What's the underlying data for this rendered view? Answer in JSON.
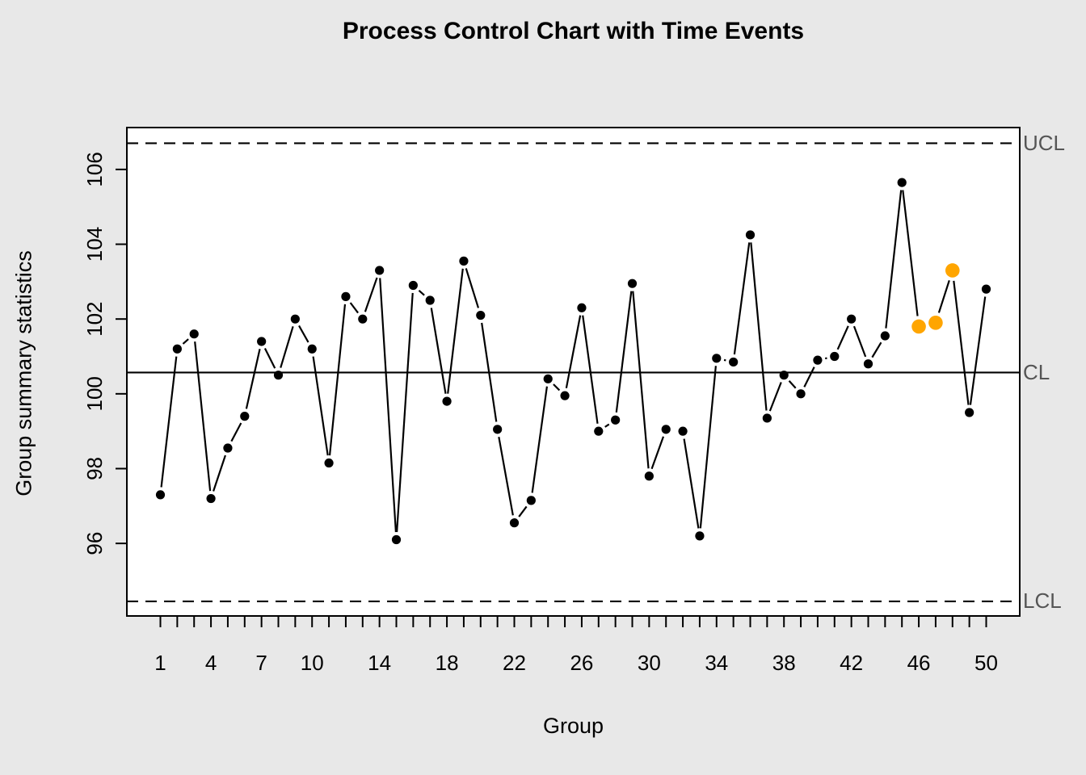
{
  "title": "Process Control Chart with Time Events",
  "chart_data": {
    "type": "line",
    "title": "Process Control Chart with Time Events",
    "xlabel": "Group",
    "ylabel": "Group summary statistics",
    "x": [
      1,
      2,
      3,
      4,
      5,
      6,
      7,
      8,
      9,
      10,
      11,
      12,
      13,
      14,
      15,
      16,
      17,
      18,
      19,
      20,
      21,
      22,
      23,
      24,
      25,
      26,
      27,
      28,
      29,
      30,
      31,
      32,
      33,
      34,
      35,
      36,
      37,
      38,
      39,
      40,
      41,
      42,
      43,
      44,
      45,
      46,
      47,
      48,
      49,
      50
    ],
    "values": [
      97.3,
      101.2,
      101.6,
      97.2,
      98.55,
      99.4,
      101.4,
      100.5,
      102.0,
      101.2,
      98.15,
      102.6,
      102.0,
      103.3,
      96.1,
      102.9,
      102.5,
      99.8,
      103.55,
      102.1,
      99.05,
      96.55,
      97.15,
      100.4,
      99.95,
      102.3,
      99.0,
      99.3,
      102.95,
      97.8,
      99.05,
      99.0,
      96.2,
      100.95,
      100.85,
      104.25,
      99.35,
      100.5,
      100.0,
      100.9,
      101.0,
      102.0,
      100.8,
      101.55,
      105.65,
      101.8,
      101.9,
      103.3,
      99.5,
      102.8
    ],
    "center": 100.57,
    "ucl": 106.7,
    "lcl": 94.45,
    "center_label": "CL",
    "ucl_label": "UCL",
    "lcl_label": "LCL",
    "event_points": [
      46,
      47,
      48
    ],
    "x_tick_labels": [
      1,
      4,
      7,
      10,
      14,
      18,
      22,
      26,
      30,
      34,
      38,
      42,
      46,
      50
    ],
    "y_ticks": [
      96,
      98,
      100,
      102,
      104,
      106
    ],
    "ylim": [
      94.06,
      107.12
    ],
    "xlim": [
      -0.99,
      51.99
    ],
    "legend_position": "none",
    "grid": false,
    "colors": {
      "background": "#E8E8E8",
      "plot_background": "#FFFFFF",
      "series": "#000000",
      "event_point": "#FFA500",
      "limit_label": "#555555",
      "axis": "#000000"
    }
  }
}
